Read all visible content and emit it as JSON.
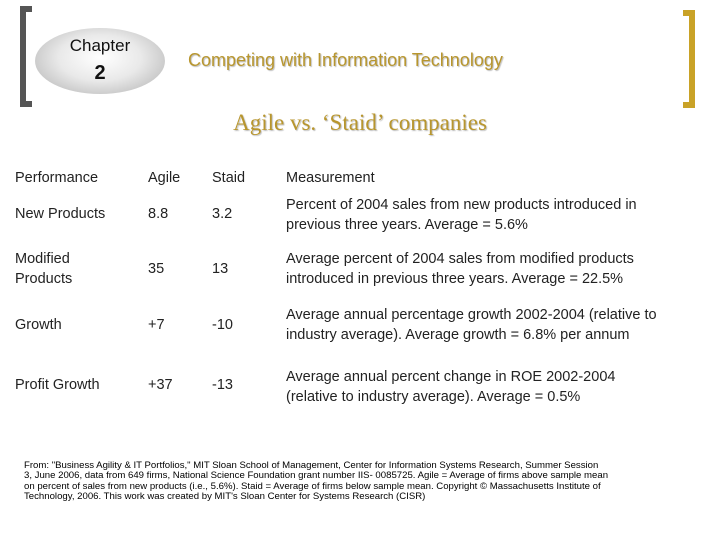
{
  "header": {
    "chapter_label": "Chapter",
    "chapter_number": "2",
    "title": "Competing with Information Technology"
  },
  "slide": {
    "title": "Agile vs. ‘Staid’ companies"
  },
  "table": {
    "headers": [
      "Performance",
      "Agile",
      "Staid",
      "Measurement"
    ],
    "rows": [
      {
        "performance": "New Products",
        "agile": "8.8",
        "staid": "3.2",
        "measurement_line1": "Percent of 2004 sales from new products introduced in",
        "measurement_line2": "previous three years. Average = 5.6%"
      },
      {
        "performance_line1": "Modified",
        "performance_line2": "Products",
        "agile": "35",
        "staid": "13",
        "measurement_line1": "Average percent of 2004 sales from modified products",
        "measurement_line2": "introduced in previous three years. Average = 22.5%"
      },
      {
        "performance": "Growth",
        "agile": "+7",
        "staid": "-10",
        "measurement_line1": "Average annual percentage growth 2002-2004 (relative to",
        "measurement_line2": "industry average). Average growth = 6.8% per annum"
      },
      {
        "performance": "Profit Growth",
        "agile": "+37",
        "staid": "-13",
        "measurement_line1": "Average annual percent change in ROE 2002-2004",
        "measurement_line2": "(relative to industry average). Average = 0.5%"
      }
    ]
  },
  "footnote": {
    "line1": "From: \"Business Agility & IT Portfolios,\" MIT Sloan School of Management, Center for Information Systems Research, Summer Session",
    "line2": "3, June 2006, data from 649 firms, National Science Foundation grant number IIS- 0085725. Agile = Average of firms above sample mean",
    "line3": "on percent of sales from new products (i.e., 5.6%). Staid = Average of firms below sample mean. Copyright © Massachusetts Institute of",
    "line4": "Technology, 2006. This work was created by MIT's Sloan Center for Systems Research (CISR)"
  },
  "colors": {
    "accent_gold": "#b8962e",
    "left_bracket": "#555555",
    "right_bracket": "#c9a227"
  }
}
